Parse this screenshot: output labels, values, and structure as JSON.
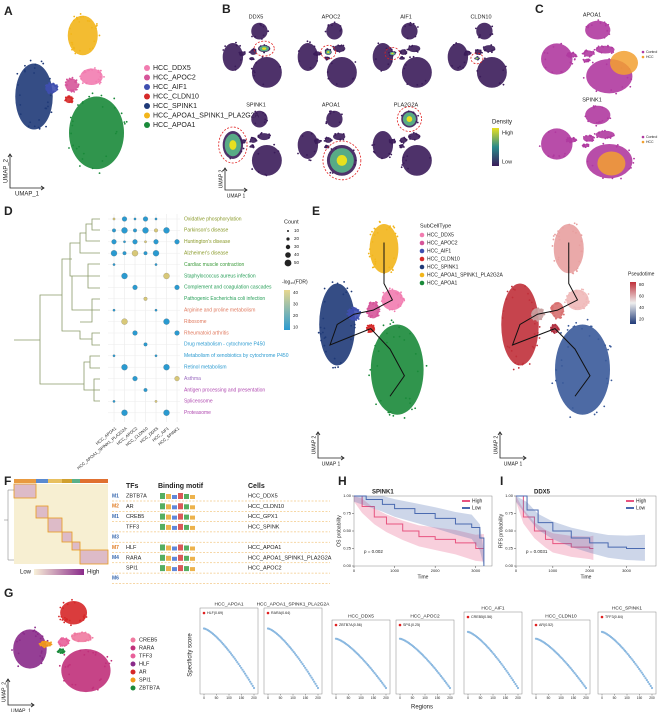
{
  "panel_labels": [
    "A",
    "B",
    "C",
    "D",
    "E",
    "F",
    "G",
    "H",
    "I"
  ],
  "a": {
    "cell_types": [
      {
        "name": "HCC_DDX5",
        "color": "#f27cb0"
      },
      {
        "name": "HCC_APOC2",
        "color": "#d6559a"
      },
      {
        "name": "HCC_AIF1",
        "color": "#3f4fb0"
      },
      {
        "name": "HCC_CLDN10",
        "color": "#d62a2a"
      },
      {
        "name": "HCC_SPINK1",
        "color": "#1f3a78"
      },
      {
        "name": "HCC_APOA1_SPINK1_PLA2G2A",
        "color": "#f2b51b"
      },
      {
        "name": "HCC_APOA1",
        "color": "#1a8a3a"
      }
    ],
    "x_axis": "UMAP_1",
    "y_axis": "UMAP_2"
  },
  "b": {
    "genes": [
      "DDX5",
      "APOC2",
      "AIF1",
      "CLDN10",
      "SPINK1",
      "APOA1",
      "PLA2G2A"
    ],
    "legend_title": "Density",
    "legend_high": "High",
    "legend_low": "Low",
    "x_axis": "UMAP 1",
    "y_axis": "UMAP 2"
  },
  "c": {
    "genes": [
      "APOA1",
      "SPINK1"
    ],
    "legend": [
      "Control",
      "HCC"
    ]
  },
  "d": {
    "pathways": [
      {
        "name": "Oxidative phosphorylation",
        "color": "#8a9a2a"
      },
      {
        "name": "Parkinson's disease",
        "color": "#8a9a2a"
      },
      {
        "name": "Huntington's disease",
        "color": "#8a9a2a"
      },
      {
        "name": "Alzheimer's disease",
        "color": "#8a9a2a"
      },
      {
        "name": "Cardiac muscle contraction",
        "color": "#3a9a3a"
      },
      {
        "name": "Staphylococcus aureus infection",
        "color": "#2aa05a"
      },
      {
        "name": "Complement and coagulation cascades",
        "color": "#2aa05a"
      },
      {
        "name": "Pathogenic Escherichia coli infection",
        "color": "#2aa05a"
      },
      {
        "name": "Arginine and proline metabolism",
        "color": "#e07a5f"
      },
      {
        "name": "Ribosome",
        "color": "#e07a5f"
      },
      {
        "name": "Rheumatoid arthritis",
        "color": "#e07a5f"
      },
      {
        "name": "Drug metabolism - cytochrome P450",
        "color": "#2a9ad0"
      },
      {
        "name": "Metabolism of xenobiotics by cytochrome P450",
        "color": "#2a9ad0"
      },
      {
        "name": "Retinol metabolism",
        "color": "#2a9ad0"
      },
      {
        "name": "Asthma",
        "color": "#9a6ac0"
      },
      {
        "name": "Antigen processing and presentation",
        "color": "#b04ab0"
      },
      {
        "name": "Spliceosome",
        "color": "#b04ab0"
      },
      {
        "name": "Proteasome",
        "color": "#b04ab0"
      }
    ],
    "groups": [
      "HCC_APOA1",
      "HCC_APOA1_SPINK1_PLA2G2A",
      "HCC_APOC2",
      "HCC_CLDN10",
      "HCC_DDX5",
      "HCC_AIF1",
      "HCC_SPINK1"
    ],
    "count_title": "Count",
    "count_ticks": [
      10,
      20,
      30,
      40,
      50
    ],
    "fdr_title": "-log₁₀(FDR)",
    "fdr_ticks": [
      40,
      30,
      20,
      10
    ]
  },
  "e": {
    "legend_title": "SubCellType",
    "x_axis": "UMAP 1",
    "y_axis": "UMAP 2",
    "pseudotime_title": "Pseudotime",
    "pseudotime_ticks": [
      80,
      60,
      40,
      20
    ]
  },
  "f": {
    "headers": [
      "TFs",
      "Binding motif",
      "Cells"
    ],
    "rows": [
      {
        "module": "M1",
        "tf": "ZBTB7A",
        "cell": "HCC_DDX5"
      },
      {
        "module": "M2",
        "tf": "AR",
        "cell": "HCC_CLDN10"
      },
      {
        "module": "M1",
        "tf": "CREB5",
        "cell": "HCC_GPX1"
      },
      {
        "tf": "TFF3",
        "cell": "HCC_SPINK"
      },
      {
        "module": "M3"
      },
      {
        "module": "M7",
        "tf": "HLF",
        "cell": "HCC_APOA1"
      },
      {
        "module": "M4",
        "tf": "RARA",
        "cell": "HCC_APOA1_SPINK1_PLA2G2A"
      },
      {
        "tf": "SPI1",
        "cell": "HCC_APOC2"
      },
      {
        "module": "M6"
      }
    ],
    "low": "Low",
    "high": "High"
  },
  "g": {
    "legend": [
      {
        "name": "CREB5",
        "color": "#f07aa0"
      },
      {
        "name": "RARA",
        "color": "#c0307a"
      },
      {
        "name": "TFF3",
        "color": "#e8609a"
      },
      {
        "name": "HLF",
        "color": "#8a2a8a"
      },
      {
        "name": "AR",
        "color": "#d62728"
      },
      {
        "name": "SPI1",
        "color": "#f29a1b"
      },
      {
        "name": "ZBTB7A",
        "color": "#1a8a3a"
      }
    ],
    "x_axis": "UMAP_1",
    "y_axis": "UMAP_2",
    "score_axis": "Specificity score",
    "regions_axis": "Regions",
    "xticks": [
      0,
      50,
      100,
      150,
      200
    ],
    "panels": [
      {
        "title": "HCC_APOA1",
        "top": "HLF(0.69)"
      },
      {
        "title": "HCC_APOA1_SPINK1_PLA2G2A",
        "top": "RARA(0.64)"
      },
      {
        "title": "HCC_DDX5",
        "top": "ZBTB7A(0.56)"
      },
      {
        "title": "HCC_APOC2",
        "top": "SPI1(0.25)"
      },
      {
        "title": "HCC_AIF1",
        "top": "CREB5(0.56)"
      },
      {
        "title": "HCC_CLDN10",
        "top": "AR(0.52)"
      },
      {
        "title": "HCC_SPINK1",
        "top": "TFF3(0.84)"
      }
    ]
  },
  "h": {
    "title": "SPINK1",
    "y_axis": "OS probability",
    "x_axis": "Time",
    "p": "p = 0.002",
    "xlim": [
      0,
      3400
    ],
    "ylim": [
      0,
      1
    ],
    "xticks": [
      0,
      1000,
      2000,
      3000
    ],
    "yticks": [
      {
        "value": 0,
        "label": "0.00"
      },
      {
        "value": 0.25,
        "label": "0.25"
      },
      {
        "value": 0.5,
        "label": "0.50"
      },
      {
        "value": 0.75,
        "label": "0.75"
      },
      {
        "value": 1,
        "label": "1.00"
      }
    ],
    "series": [
      {
        "name": "High",
        "color": "#e75480",
        "x": [
          0,
          200,
          500,
          800,
          1200,
          1600,
          2000,
          2500,
          3000,
          3200
        ],
        "values": [
          1,
          0.85,
          0.7,
          0.6,
          0.5,
          0.42,
          0.38,
          0.33,
          0.25,
          0.25
        ]
      },
      {
        "name": "Low",
        "color": "#4a6ab0",
        "x": [
          0,
          300,
          700,
          1000,
          1500,
          2000,
          2500,
          2900,
          3100,
          3200
        ],
        "values": [
          1,
          0.95,
          0.88,
          0.82,
          0.75,
          0.68,
          0.6,
          0.55,
          0.4,
          0
        ]
      }
    ]
  },
  "i": {
    "title": "DDX5",
    "y_axis": "RFS probability",
    "x_axis": "Time",
    "p": "p = 0.0031",
    "xlim": [
      0,
      3800
    ],
    "ylim": [
      0,
      1
    ],
    "xticks": [
      0,
      1000,
      2000,
      3000
    ],
    "yticks": [
      {
        "value": 0,
        "label": "0.00"
      },
      {
        "value": 0.25,
        "label": "0.25"
      },
      {
        "value": 0.5,
        "label": "0.50"
      },
      {
        "value": 0.75,
        "label": "0.75"
      },
      {
        "value": 1,
        "label": "1.00"
      }
    ],
    "series": [
      {
        "name": "High",
        "color": "#e75480",
        "x": [
          0,
          200,
          500,
          800,
          1000,
          1500,
          2000,
          2100
        ],
        "values": [
          1,
          0.7,
          0.5,
          0.38,
          0.32,
          0.27,
          0.25,
          0.25
        ]
      },
      {
        "name": "Low",
        "color": "#4a6ab0",
        "x": [
          0,
          300,
          600,
          1000,
          1500,
          2000,
          2500,
          3000,
          3500
        ],
        "values": [
          1,
          0.8,
          0.62,
          0.5,
          0.4,
          0.33,
          0.27,
          0.25,
          0.25
        ]
      }
    ]
  }
}
